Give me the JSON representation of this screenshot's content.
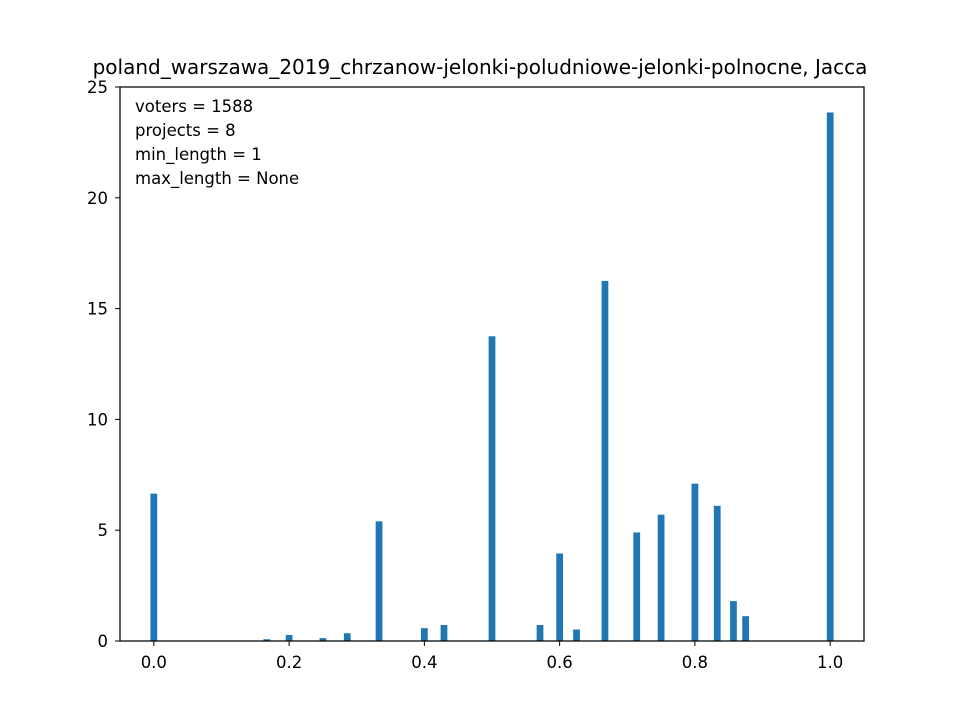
{
  "chart_data": {
    "type": "bar",
    "title": "poland_warszawa_2019_chrzanow-jelonki-poludniowe-jelonki-polnocne, Jacca",
    "xlabel": "",
    "ylabel": "",
    "xlim": [
      -0.05,
      1.05
    ],
    "ylim": [
      0,
      25
    ],
    "x_ticks": [
      0.0,
      0.2,
      0.4,
      0.6,
      0.8,
      1.0
    ],
    "x_tick_labels": [
      "0.0",
      "0.2",
      "0.4",
      "0.6",
      "0.8",
      "1.0"
    ],
    "y_ticks": [
      0,
      5,
      10,
      15,
      20,
      25
    ],
    "y_tick_labels": [
      "0",
      "5",
      "10",
      "15",
      "20",
      "25"
    ],
    "bar_width": 0.01,
    "color": "#1f77b4",
    "grid": false,
    "annotations": [
      "voters = 1588",
      "projects = 8",
      "min_length = 1",
      "max_length = None"
    ],
    "x": [
      0.0,
      0.167,
      0.2,
      0.25,
      0.286,
      0.333,
      0.4,
      0.429,
      0.5,
      0.571,
      0.6,
      0.625,
      0.667,
      0.714,
      0.75,
      0.8,
      0.833,
      0.857,
      0.875,
      1.0
    ],
    "values": [
      6.65,
      0.08,
      0.27,
      0.13,
      0.35,
      5.4,
      0.58,
      0.72,
      13.75,
      0.72,
      3.95,
      0.52,
      16.25,
      4.9,
      5.7,
      7.1,
      6.1,
      1.8,
      1.12,
      23.85
    ]
  }
}
